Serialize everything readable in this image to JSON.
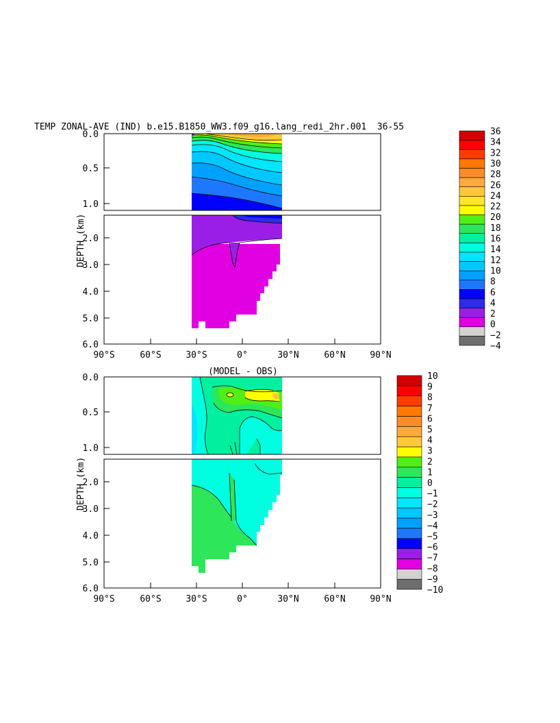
{
  "title": "TEMP ZONAL-AVE (IND) b.e15.B1850_WW3.f09_g16.lang_redi_2hr.001  36-55 ",
  "colors": {
    "temp_levels": [
      "#6e6e6e",
      "#d2d2d2",
      "#e100e1",
      "#9b1ee6",
      "#2d2de6",
      "#0000ff",
      "#1e78ff",
      "#00a0ff",
      "#00c8ff",
      "#00e6ff",
      "#00ffe1",
      "#00f0a0",
      "#2de65a",
      "#50f014",
      "#ffff00",
      "#ffe628",
      "#ffc83c",
      "#ffaa3c",
      "#ff8c28",
      "#ff7800",
      "#ff3c00",
      "#ff0000",
      "#d20000"
    ],
    "diff_levels": [
      "#6e6e6e",
      "#d2d2d2",
      "#e100e1",
      "#9b1ee6",
      "#0000ff",
      "#1e78ff",
      "#00a0ff",
      "#00c8ff",
      "#00e6ff",
      "#00ffe1",
      "#00f0a0",
      "#2de65a",
      "#50f014",
      "#ffff00",
      "#ffc83c",
      "#ffaa3c",
      "#ff8c28",
      "#ff7800",
      "#ff3c00",
      "#ff0000",
      "#d20000"
    ]
  },
  "chart_data": [
    {
      "type": "heatmap",
      "panel": "temperature",
      "title": "TEMP ZONAL-AVE (IND) b.e15.B1850_WW3.f09_g16.lang_redi_2hr.001  36-55 ",
      "ylabel": "DEPTH (km)",
      "xlim": [
        -90,
        90
      ],
      "ylim": [
        6.0,
        0.0
      ],
      "x_ticks": [
        "90°S",
        "60°S",
        "30°S",
        "0°",
        "30°N",
        "60°N",
        "90°N"
      ],
      "y_ticks_upper": [
        "0.0",
        "0.5",
        "1.0"
      ],
      "y_ticks_lower": [
        "2.0",
        "3.0",
        "4.0",
        "5.0",
        "6.0"
      ],
      "colorbar_labels": [
        "36",
        "34",
        "32",
        "30",
        "28",
        "26",
        "24",
        "22",
        "20",
        "18",
        "16",
        "14",
        "12",
        "10",
        "8",
        "6",
        "4",
        "2",
        "0",
        "-2",
        "-4"
      ],
      "data_lon_range": [
        -34,
        26
      ],
      "layers": [
        {
          "depth_top": 0.0,
          "depth_bottom": 0.05,
          "value": 26
        },
        {
          "depth_top": 0.05,
          "depth_bottom": 0.15,
          "value": 22
        },
        {
          "depth_top": 0.15,
          "depth_bottom": 0.3,
          "value": 17
        },
        {
          "depth_top": 0.3,
          "depth_bottom": 0.5,
          "value": 13
        },
        {
          "depth_top": 0.5,
          "depth_bottom": 0.75,
          "value": 10
        },
        {
          "depth_top": 0.75,
          "depth_bottom": 1.0,
          "value": 7
        },
        {
          "depth_top": 1.0,
          "depth_bottom": 1.5,
          "value": 5
        },
        {
          "depth_top": 1.5,
          "depth_bottom": 2.2,
          "value": 3
        },
        {
          "depth_top": 2.2,
          "depth_bottom": 5.4,
          "value": 1
        }
      ]
    },
    {
      "type": "heatmap",
      "panel": "difference",
      "title": "(MODEL - OBS)",
      "ylabel": "DEPTH (km)",
      "xlim": [
        -90,
        90
      ],
      "ylim": [
        6.0,
        0.0
      ],
      "x_ticks": [
        "90°S",
        "60°S",
        "30°S",
        "0°",
        "30°N",
        "60°N",
        "90°N"
      ],
      "y_ticks_upper": [
        "0.0",
        "0.5",
        "1.0"
      ],
      "y_ticks_lower": [
        "2.0",
        "3.0",
        "4.0",
        "5.0",
        "6.0"
      ],
      "colorbar_labels": [
        "10",
        "9",
        "8",
        "7",
        "6",
        "5",
        "4",
        "3",
        "2",
        "1",
        "0",
        "-1",
        "-2",
        "-3",
        "-4",
        "-5",
        "-6",
        "-7",
        "-8",
        "-9",
        "-10"
      ],
      "data_lon_range": [
        -34,
        26
      ],
      "regions": [
        {
          "depth_range": [
            0.0,
            1.1
          ],
          "value": 0.5
        },
        {
          "depth_range": [
            0.2,
            0.4
          ],
          "value": 2.5
        },
        {
          "depth_range": [
            1.1,
            2.5
          ],
          "value": -0.5
        },
        {
          "depth_range": [
            2.5,
            5.4
          ],
          "value": 0.5
        }
      ]
    }
  ]
}
